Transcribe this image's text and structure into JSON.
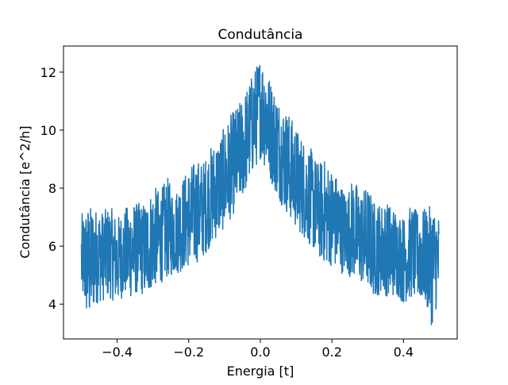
{
  "chart_data": {
    "type": "line",
    "title": "Condutância",
    "xlabel": "Energia [t]",
    "ylabel": "Condutância [e^2/h]",
    "xlim": [
      -0.55,
      0.55
    ],
    "ylim": [
      2.8,
      12.9
    ],
    "xticks": [
      -0.4,
      -0.2,
      0.0,
      0.2,
      0.4
    ],
    "xtick_labels": [
      "−0.4",
      "−0.2",
      "0.0",
      "0.2",
      "0.4"
    ],
    "yticks": [
      4,
      6,
      8,
      10,
      12
    ],
    "ytick_labels": [
      "4",
      "6",
      "8",
      "10",
      "12"
    ],
    "grid": false,
    "line_color": "#1f77b4",
    "series": [
      {
        "x": [
          -0.5,
          -0.48,
          -0.46,
          -0.44,
          -0.42,
          -0.4,
          -0.38,
          -0.36,
          -0.34,
          -0.32,
          -0.3,
          -0.28,
          -0.26,
          -0.24,
          -0.22,
          -0.2,
          -0.18,
          -0.16,
          -0.14,
          -0.12,
          -0.1,
          -0.08,
          -0.06,
          -0.04,
          -0.02,
          0.0,
          0.02,
          0.04,
          0.06,
          0.08,
          0.1,
          0.12,
          0.14,
          0.16,
          0.18,
          0.2,
          0.22,
          0.24,
          0.26,
          0.28,
          0.3,
          0.32,
          0.34,
          0.36,
          0.38,
          0.4,
          0.42,
          0.44,
          0.46,
          0.48,
          0.5
        ],
        "y_mean": [
          5.4,
          5.5,
          5.7,
          5.8,
          5.7,
          5.5,
          5.6,
          5.8,
          5.9,
          5.9,
          6.0,
          6.2,
          6.4,
          6.6,
          6.8,
          6.9,
          7.0,
          7.3,
          7.5,
          7.9,
          8.3,
          8.6,
          9.1,
          9.6,
          10.4,
          11.2,
          10.4,
          9.6,
          9.1,
          8.6,
          8.3,
          7.9,
          7.5,
          7.3,
          7.0,
          6.9,
          6.8,
          6.6,
          6.4,
          6.2,
          6.0,
          5.9,
          5.9,
          5.8,
          5.6,
          5.5,
          5.7,
          5.8,
          5.7,
          5.5,
          5.4
        ],
        "y_max": [
          7.1,
          7.4,
          7.3,
          7.2,
          7.4,
          7.0,
          7.3,
          7.5,
          7.5,
          7.5,
          8.1,
          7.9,
          8.4,
          7.8,
          8.3,
          8.7,
          9.0,
          8.9,
          9.4,
          9.7,
          10.1,
          10.6,
          10.9,
          11.4,
          12.0,
          12.5,
          12.0,
          11.4,
          10.9,
          10.6,
          10.1,
          9.7,
          9.4,
          8.9,
          9.0,
          8.7,
          8.3,
          7.8,
          8.4,
          7.9,
          8.1,
          7.5,
          7.5,
          7.5,
          7.3,
          7.0,
          7.4,
          7.2,
          7.3,
          7.4,
          7.1
        ],
        "y_min": [
          4.3,
          3.2,
          4.0,
          4.1,
          4.2,
          4.0,
          4.3,
          4.2,
          4.4,
          4.2,
          4.6,
          4.7,
          4.9,
          5.0,
          5.1,
          5.3,
          5.4,
          5.6,
          6.0,
          6.3,
          6.6,
          7.0,
          7.4,
          7.9,
          8.5,
          9.0,
          8.5,
          7.9,
          7.4,
          7.0,
          6.6,
          6.3,
          6.0,
          5.6,
          5.4,
          5.3,
          5.1,
          5.0,
          4.9,
          4.7,
          4.6,
          4.2,
          4.4,
          4.2,
          4.3,
          4.0,
          4.2,
          4.1,
          4.0,
          3.2,
          4.3
        ]
      }
    ]
  }
}
